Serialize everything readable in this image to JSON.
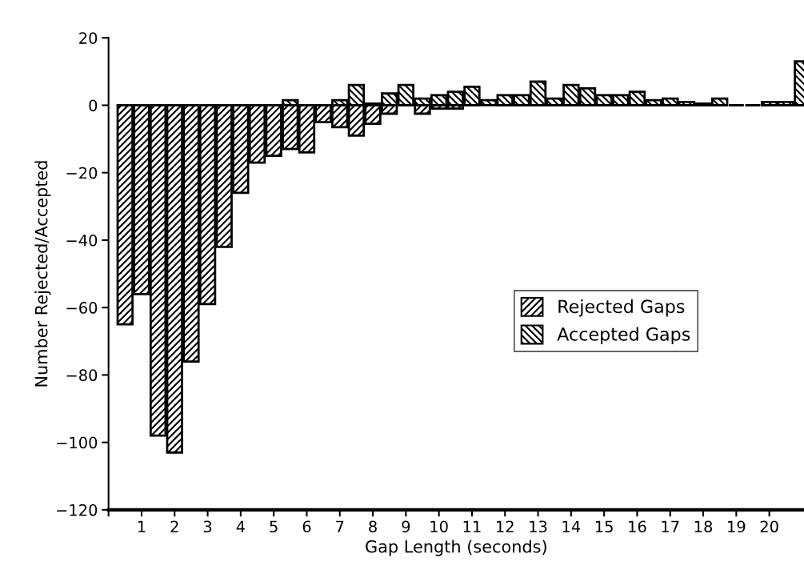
{
  "chart_data": {
    "type": "bar",
    "xlabel": "Gap Length (seconds)",
    "ylabel": "Number Rejected/Accepted",
    "x": [
      0.5,
      1,
      1.5,
      2,
      2.5,
      3,
      3.5,
      4,
      4.5,
      5,
      5.5,
      6,
      6.5,
      7,
      7.5,
      8,
      8.5,
      9,
      9.5,
      10,
      10.5,
      11,
      11.5,
      12,
      12.5,
      13,
      13.5,
      14,
      14.5,
      15,
      15.5,
      16,
      16.5,
      17,
      17.5,
      18,
      18.5,
      19,
      19.5,
      20,
      20.5,
      21
    ],
    "series": [
      {
        "name": "Rejected Gaps",
        "color": "#000000",
        "values": [
          -65,
          -56,
          -98,
          -103,
          -76,
          -59,
          -42,
          -26,
          -17,
          -15,
          -13,
          -14,
          -5,
          -6.5,
          -9,
          -5.5,
          -2.5,
          0,
          -2.5,
          -1,
          -1,
          0,
          null,
          0,
          0,
          0,
          0,
          0,
          0,
          0,
          0,
          0,
          0,
          0,
          0,
          0,
          0,
          0,
          0,
          0,
          0,
          0
        ]
      },
      {
        "name": "Accepted Gaps",
        "color": "#000000",
        "values": [
          0,
          0,
          0,
          0,
          0,
          0,
          0,
          0,
          0,
          0,
          1.5,
          0,
          0,
          1.5,
          6,
          0.5,
          3.5,
          6,
          2,
          3,
          4,
          5.5,
          1.5,
          3,
          3,
          7,
          2,
          6,
          5,
          3,
          3,
          4,
          1.5,
          2,
          1,
          0.5,
          2,
          0,
          0,
          1,
          1,
          13
        ]
      }
    ],
    "xlim": [
      0,
      21.05
    ],
    "xticks": [
      {
        "value": 0,
        "label": null
      },
      1,
      2,
      3,
      4,
      5,
      6,
      7,
      8,
      9,
      10,
      11,
      12,
      13,
      14,
      15,
      16,
      17,
      18,
      19,
      20
    ],
    "ylim": [
      -120,
      20
    ],
    "yticks": [
      -120,
      -100,
      -80,
      -60,
      -40,
      -20,
      0,
      20
    ],
    "grid": false,
    "legend": "center right"
  }
}
